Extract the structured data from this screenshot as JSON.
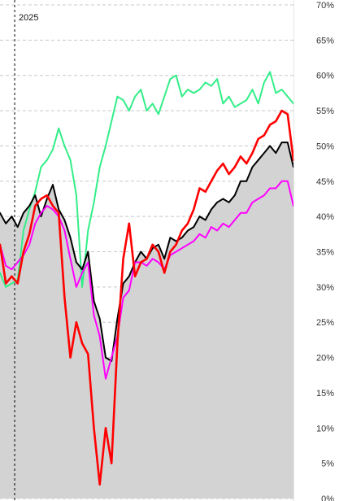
{
  "chart_data": {
    "type": "line",
    "title": "",
    "xlabel": "",
    "ylabel": "",
    "ylim": [
      0,
      70
    ],
    "y_ticks": [
      "0%",
      "5%",
      "10%",
      "15%",
      "20%",
      "25%",
      "30%",
      "35%",
      "40%",
      "45%",
      "50%",
      "55%",
      "60%",
      "65%",
      "70%"
    ],
    "y_axis_position": "right",
    "grid": true,
    "legend": "none",
    "x_marker": {
      "label": "2025",
      "x": 0.05
    },
    "x": [
      0,
      0.02,
      0.04,
      0.06,
      0.08,
      0.1,
      0.12,
      0.14,
      0.16,
      0.18,
      0.2,
      0.22,
      0.24,
      0.26,
      0.28,
      0.3,
      0.32,
      0.34,
      0.36,
      0.38,
      0.4,
      0.42,
      0.44,
      0.46,
      0.48,
      0.5,
      0.52,
      0.54,
      0.56,
      0.58,
      0.6,
      0.62,
      0.64,
      0.66,
      0.68,
      0.7,
      0.72,
      0.74,
      0.76,
      0.78,
      0.8,
      0.82,
      0.84,
      0.86,
      0.88,
      0.9,
      0.92,
      0.94,
      0.96,
      0.98,
      1.0
    ],
    "series": [
      {
        "color": "#000000",
        "fill": "#d3d3d3",
        "values": [
          40.5,
          39.0,
          40.0,
          38.5,
          40.5,
          41.5,
          43.0,
          40.0,
          42.5,
          44.5,
          41.0,
          39.5,
          37.0,
          33.5,
          32.5,
          35.0,
          28.0,
          25.5,
          20.0,
          19.5,
          25.5,
          30.5,
          31.5,
          33.5,
          35.0,
          34.0,
          35.5,
          36.0,
          34.0,
          37.0,
          36.5,
          37.0,
          38.0,
          38.5,
          40.0,
          39.5,
          41.0,
          42.0,
          42.5,
          42.0,
          43.0,
          45.0,
          45.0,
          47.0,
          48.0,
          49.0,
          50.0,
          49.0,
          50.5,
          50.5,
          47.0
        ]
      },
      {
        "color": "#ff00ff",
        "values": [
          36.0,
          33.0,
          32.5,
          33.5,
          34.5,
          36.0,
          39.0,
          40.5,
          41.5,
          41.0,
          40.0,
          38.0,
          34.0,
          30.0,
          32.0,
          33.5,
          26.0,
          23.0,
          17.0,
          20.0,
          23.0,
          28.5,
          29.5,
          33.5,
          33.5,
          33.0,
          34.0,
          33.5,
          32.5,
          34.5,
          35.0,
          35.5,
          36.0,
          36.5,
          37.5,
          37.0,
          38.5,
          38.0,
          39.0,
          38.5,
          39.5,
          40.5,
          40.5,
          42.0,
          42.5,
          43.0,
          44.0,
          44.0,
          45.0,
          45.0,
          41.5
        ]
      },
      {
        "color": "#ff0000",
        "values": [
          36.0,
          30.5,
          31.5,
          30.5,
          35.0,
          37.5,
          41.5,
          42.5,
          43.0,
          41.5,
          40.5,
          28.5,
          20.0,
          25.0,
          22.0,
          20.5,
          10.0,
          2.0,
          10.0,
          5.0,
          22.0,
          34.0,
          39.0,
          31.5,
          33.5,
          34.0,
          36.0,
          35.0,
          32.0,
          35.0,
          36.0,
          38.0,
          39.0,
          41.0,
          44.0,
          43.5,
          45.0,
          46.5,
          47.5,
          46.0,
          47.0,
          48.5,
          47.5,
          49.0,
          51.0,
          51.5,
          53.0,
          53.5,
          55.0,
          54.5,
          48.0
        ]
      },
      {
        "color": "#33ee88",
        "values": [
          32.0,
          30.0,
          30.5,
          31.0,
          38.0,
          41.0,
          43.5,
          47.0,
          48.0,
          49.5,
          52.5,
          50.0,
          48.0,
          43.0,
          30.0,
          38.0,
          42.0,
          47.0,
          50.0,
          53.5,
          57.0,
          56.5,
          55.0,
          57.0,
          58.0,
          55.0,
          56.0,
          54.5,
          57.0,
          59.5,
          60.0,
          57.0,
          58.0,
          57.5,
          58.0,
          59.0,
          58.5,
          59.5,
          56.0,
          57.0,
          55.5,
          56.0,
          56.5,
          58.0,
          56.0,
          59.0,
          60.5,
          57.5,
          58.0,
          57.0,
          56.0
        ]
      }
    ]
  }
}
